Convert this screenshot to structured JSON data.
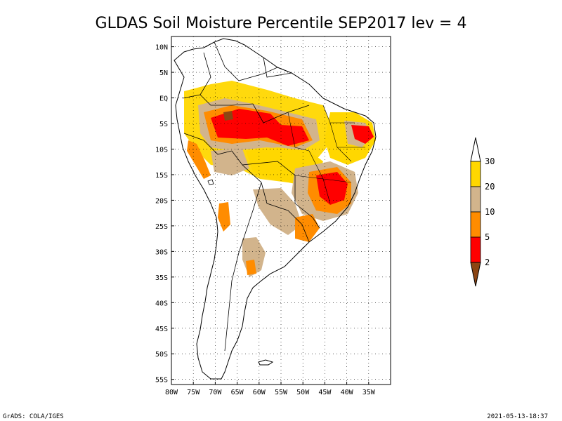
{
  "title": "GLDAS Soil Moisture Percentile SEP2017 lev = 4",
  "footer_left": "GrADS: COLA/IGES",
  "footer_right": "2021-05-13-18:37",
  "axes": {
    "lat_labels": [
      "10N",
      "5N",
      "EQ",
      "5S",
      "10S",
      "15S",
      "20S",
      "25S",
      "30S",
      "35S",
      "40S",
      "45S",
      "50S",
      "55S"
    ],
    "lat_values": [
      10,
      5,
      0,
      -5,
      -10,
      -15,
      -20,
      -25,
      -30,
      -35,
      -40,
      -45,
      -50,
      -55
    ],
    "lon_labels": [
      "80W",
      "75W",
      "70W",
      "65W",
      "60W",
      "55W",
      "50W",
      "45W",
      "40W",
      "35W"
    ],
    "lon_values": [
      -80,
      -75,
      -70,
      -65,
      -60,
      -55,
      -50,
      -45,
      -40,
      -35
    ],
    "lon_range": [
      -80,
      -30
    ],
    "lat_range": [
      -56,
      12
    ],
    "grid": "dotted"
  },
  "colorbar": {
    "labels": [
      "30",
      "20",
      "10",
      "5",
      "2"
    ],
    "colors": [
      "#ffd700",
      "#d2b48c",
      "#ff8c00",
      "#ff0000",
      "#8b4513"
    ],
    "top_cap_color": "#ffffff",
    "bottom_cap_color": "#8b4513"
  },
  "map_colors": {
    "yellow": "#ffd700",
    "tan": "#d2b48c",
    "orange": "#ff8c00",
    "red": "#ff0000",
    "brown": "#8b4513",
    "coast": "#000000"
  }
}
